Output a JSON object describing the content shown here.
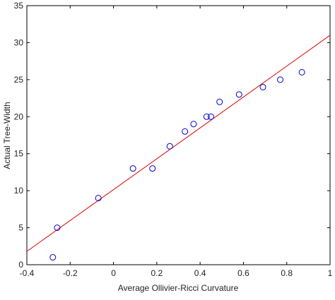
{
  "chart_data": {
    "type": "scatter",
    "x_label": "Average Ollivier-Ricci Curvature",
    "y_label": "Actual Tree-Width",
    "series": [
      {
        "color": "#0000cc",
        "x": [
          -0.28,
          -0.26,
          -0.07,
          0.09,
          0.18,
          0.26,
          0.33,
          0.37,
          0.43,
          0.45,
          0.49,
          0.58,
          0.69,
          0.77,
          0.87
        ],
        "values": [
          1,
          5,
          9,
          13,
          13,
          16,
          18,
          19,
          20,
          20,
          22,
          23,
          24,
          25,
          26
        ]
      }
    ],
    "fit_line": {
      "color": "#dd0000",
      "x": [
        -0.4,
        1
      ],
      "values": [
        1.8,
        31
      ]
    },
    "xlim": [
      -0.4,
      1
    ],
    "xticks": [
      -0.4,
      -0.2,
      0,
      0.2,
      0.4,
      0.6,
      0.8,
      1
    ],
    "ylim": [
      0,
      35
    ],
    "yticks": [
      0,
      5,
      10,
      15,
      20,
      25,
      30,
      35
    ]
  }
}
